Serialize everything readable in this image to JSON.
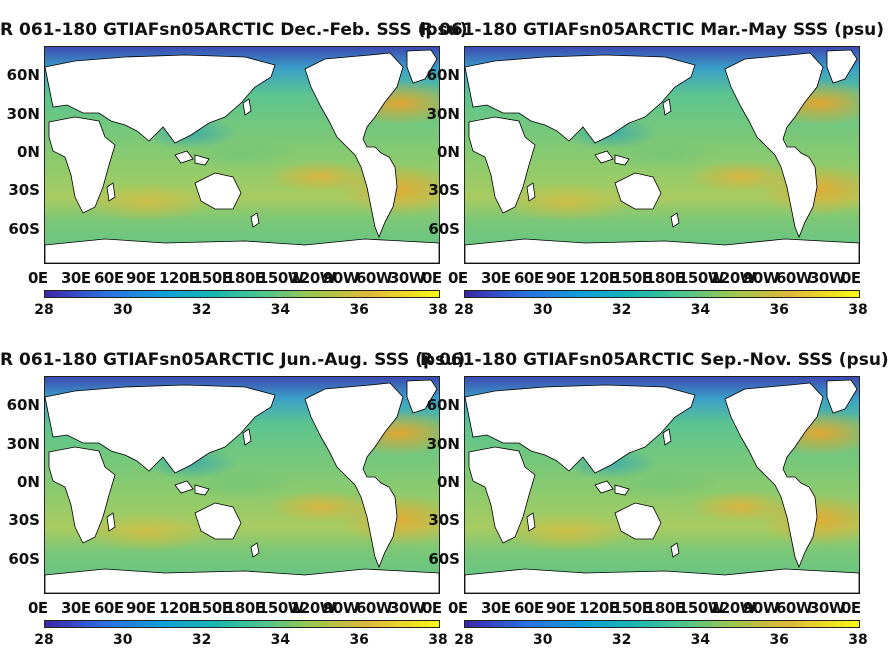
{
  "panels": [
    {
      "title": "R 061-180 GTIAFsn05ARCTIC Dec.-Feb. SSS (psu)"
    },
    {
      "title": "R 061-180 GTIAFsn05ARCTIC Mar.-May SSS (psu)"
    },
    {
      "title": "R 061-180 GTIAFsn05ARCTIC Jun.-Aug. SSS (psu)"
    },
    {
      "title": "R 061-180 GTIAFsn05ARCTIC Sep.-Nov. SSS (psu)"
    }
  ],
  "chart_data": [
    {
      "type": "heatmap",
      "title": "R 061-180 GTIAFsn05ARCTIC Dec.-Feb. SSS (psu)",
      "x_ticks": [
        "0E",
        "30E",
        "60E",
        "90E",
        "120E",
        "150E",
        "180E",
        "150W",
        "120W",
        "90W",
        "60W",
        "30W",
        "0E"
      ],
      "y_ticks": [
        "60N",
        "30N",
        "0N",
        "30S",
        "60S"
      ],
      "colorbar": {
        "ticks": [
          28,
          30,
          32,
          34,
          36,
          38
        ],
        "range": [
          28,
          38
        ]
      }
    },
    {
      "type": "heatmap",
      "title": "R 061-180 GTIAFsn05ARCTIC Mar.-May SSS (psu)",
      "x_ticks": [
        "0E",
        "30E",
        "60E",
        "90E",
        "120E",
        "150E",
        "180E",
        "150W",
        "120W",
        "90W",
        "60W",
        "30W",
        "0E"
      ],
      "y_ticks": [
        "60N",
        "30N",
        "0N",
        "30S",
        "60S"
      ],
      "colorbar": {
        "ticks": [
          28,
          30,
          32,
          34,
          36,
          38
        ],
        "range": [
          28,
          38
        ]
      }
    },
    {
      "type": "heatmap",
      "title": "R 061-180 GTIAFsn05ARCTIC Jun.-Aug. SSS (psu)",
      "x_ticks": [
        "0E",
        "30E",
        "60E",
        "90E",
        "120E",
        "150E",
        "180E",
        "150W",
        "120W",
        "90W",
        "60W",
        "30W",
        "0E"
      ],
      "y_ticks": [
        "60N",
        "30N",
        "0N",
        "30S",
        "60S"
      ],
      "colorbar": {
        "ticks": [
          28,
          30,
          32,
          34,
          36,
          38
        ],
        "range": [
          28,
          38
        ]
      }
    },
    {
      "type": "heatmap",
      "title": "R 061-180 GTIAFsn05ARCTIC Sep.-Nov. SSS (psu)",
      "x_ticks": [
        "0E",
        "30E",
        "60E",
        "90E",
        "120E",
        "150E",
        "180E",
        "150W",
        "120W",
        "90W",
        "60W",
        "30W",
        "0E"
      ],
      "y_ticks": [
        "60N",
        "30N",
        "0N",
        "30S",
        "60S"
      ],
      "colorbar": {
        "ticks": [
          28,
          30,
          32,
          34,
          36,
          38
        ],
        "range": [
          28,
          38
        ]
      }
    }
  ]
}
